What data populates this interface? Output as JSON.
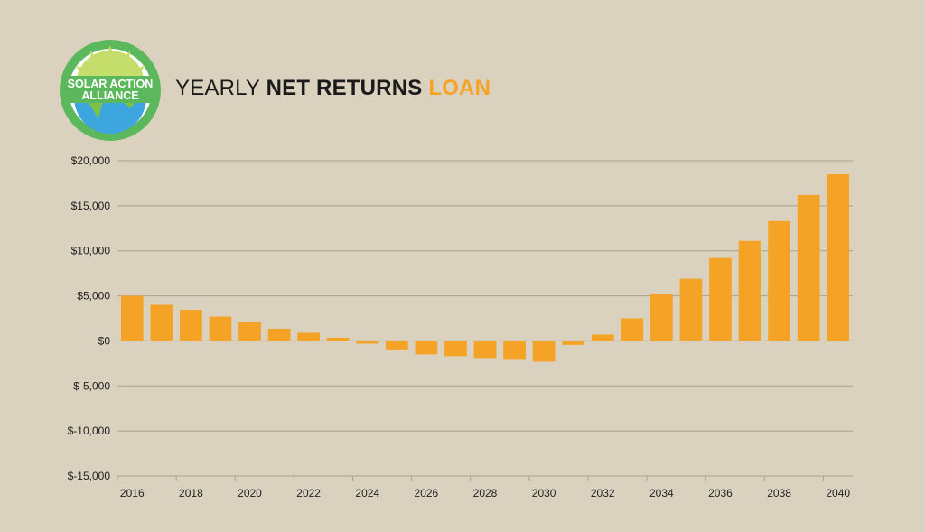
{
  "logo": {
    "line1": "SOLAR ACTION",
    "line2": "ALLIANCE",
    "colors": {
      "ring": "#5cb85c",
      "sun": "#c5dd6a",
      "earth_water": "#3ea6df",
      "earth_land": "#7cc24a"
    }
  },
  "title": {
    "part1": "YEARLY",
    "part2": "NET RETURNS",
    "part3": "LOAN",
    "accent_color": "#f5a327"
  },
  "chart_data": {
    "type": "bar",
    "categories": [
      "2016",
      "2017",
      "2018",
      "2019",
      "2020",
      "2021",
      "2022",
      "2023",
      "2024",
      "2025",
      "2026",
      "2027",
      "2028",
      "2029",
      "2030",
      "2031",
      "2032",
      "2033",
      "2034",
      "2035",
      "2036",
      "2037",
      "2038",
      "2039",
      "2040"
    ],
    "values": [
      5000,
      4000,
      3450,
      2700,
      2150,
      1350,
      900,
      350,
      -300,
      -950,
      -1500,
      -1700,
      -1900,
      -2100,
      -2300,
      -450,
      700,
      2500,
      5200,
      6900,
      9200,
      11100,
      13300,
      16200,
      18500
    ],
    "x_tick_labels": [
      "2016",
      "2018",
      "2020",
      "2022",
      "2024",
      "2026",
      "2028",
      "2030",
      "2032",
      "2034",
      "2036",
      "2038",
      "2040"
    ],
    "y_ticks": [
      20000,
      15000,
      10000,
      5000,
      0,
      -5000,
      -10000,
      -15000
    ],
    "y_tick_labels": [
      "$20,000",
      "$15,000",
      "$10,000",
      "$5,000",
      "$0",
      "$-5,000",
      "$-10,000",
      "$-15,000"
    ],
    "ylim": [
      -15000,
      20000
    ],
    "grid": true,
    "bar_color": "#f5a327",
    "grid_color": "#a8a191",
    "title": "",
    "xlabel": "",
    "ylabel": ""
  }
}
